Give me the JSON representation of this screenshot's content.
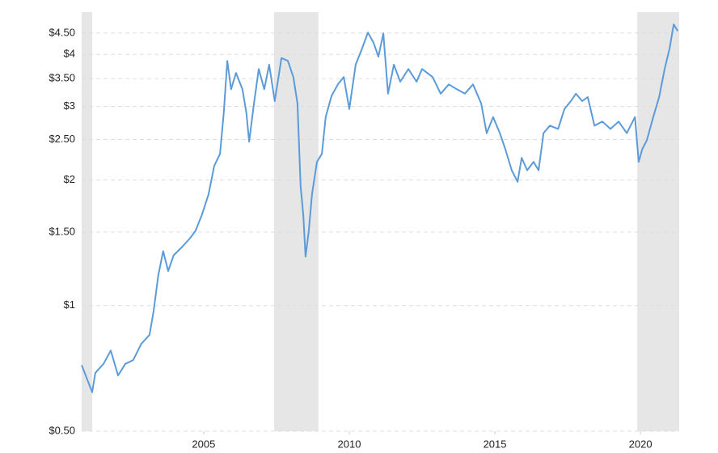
{
  "chart_data": {
    "type": "line",
    "yscale": "log",
    "grid": true,
    "grid_style": "dashed",
    "x": [
      2000.81,
      2001.17,
      2001.28,
      2001.56,
      2001.81,
      2002.06,
      2002.31,
      2002.58,
      2002.86,
      2003.14,
      2003.28,
      2003.44,
      2003.61,
      2003.78,
      2003.97,
      2004.25,
      2004.53,
      2004.72,
      2004.94,
      2005.17,
      2005.36,
      2005.56,
      2005.69,
      2005.81,
      2005.94,
      2006.11,
      2006.33,
      2006.47,
      2006.56,
      2006.72,
      2006.89,
      2007.08,
      2007.25,
      2007.44,
      2007.67,
      2007.89,
      2008.08,
      2008.22,
      2008.33,
      2008.42,
      2008.5,
      2008.61,
      2008.72,
      2008.89,
      2009.06,
      2009.19,
      2009.39,
      2009.61,
      2009.81,
      2010.0,
      2010.22,
      2010.44,
      2010.64,
      2010.83,
      2011.0,
      2011.17,
      2011.33,
      2011.53,
      2011.75,
      2012.03,
      2012.31,
      2012.5,
      2012.86,
      2013.14,
      2013.42,
      2013.69,
      2013.97,
      2014.25,
      2014.53,
      2014.72,
      2014.94,
      2015.17,
      2015.36,
      2015.58,
      2015.78,
      2015.92,
      2016.11,
      2016.33,
      2016.5,
      2016.67,
      2016.89,
      2017.17,
      2017.39,
      2017.61,
      2017.78,
      2018.0,
      2018.19,
      2018.42,
      2018.69,
      2018.97,
      2019.25,
      2019.53,
      2019.81,
      2019.94,
      2020.06,
      2020.22,
      2020.44,
      2020.64,
      2020.83,
      2021.0,
      2021.14,
      2021.28
    ],
    "series": [
      {
        "color": "#5b9bd9",
        "values": [
          0.72,
          0.62,
          0.69,
          0.725,
          0.78,
          0.68,
          0.725,
          0.74,
          0.81,
          0.85,
          0.97,
          1.18,
          1.35,
          1.21,
          1.32,
          1.38,
          1.45,
          1.51,
          1.65,
          1.85,
          2.16,
          2.31,
          2.89,
          3.86,
          3.3,
          3.61,
          3.3,
          2.89,
          2.47,
          3.02,
          3.69,
          3.3,
          3.78,
          3.09,
          3.92,
          3.86,
          3.53,
          3.05,
          1.93,
          1.65,
          1.31,
          1.51,
          1.85,
          2.21,
          2.31,
          2.83,
          3.18,
          3.39,
          3.53,
          2.96,
          3.78,
          4.13,
          4.51,
          4.27,
          3.95,
          4.49,
          3.22,
          3.78,
          3.44,
          3.69,
          3.44,
          3.69,
          3.53,
          3.22,
          3.39,
          3.3,
          3.22,
          3.39,
          3.05,
          2.59,
          2.83,
          2.59,
          2.37,
          2.11,
          1.98,
          2.26,
          2.11,
          2.21,
          2.11,
          2.59,
          2.7,
          2.65,
          2.96,
          3.09,
          3.22,
          3.09,
          3.16,
          2.7,
          2.76,
          2.65,
          2.76,
          2.59,
          2.83,
          2.21,
          2.37,
          2.49,
          2.83,
          3.16,
          3.69,
          4.13,
          4.72,
          4.55
        ]
      }
    ],
    "shaded_ranges": [
      [
        2000.81,
        2001.17
      ],
      [
        2007.42,
        2008.94
      ],
      [
        2019.89,
        2021.33
      ]
    ],
    "shade_color": "#e6e6e6",
    "xlim": [
      2000.81,
      2021.33
    ],
    "xticks": [
      2005,
      2010,
      2015,
      2020
    ],
    "ylim": [
      0.5,
      5.05
    ],
    "yticks": [
      {
        "value": 0.5,
        "label": "$0.50"
      },
      {
        "value": 1,
        "label": "$1"
      },
      {
        "value": 1.5,
        "label": "$1.50"
      },
      {
        "value": 2,
        "label": "$2"
      },
      {
        "value": 2.5,
        "label": "$2.50"
      },
      {
        "value": 3,
        "label": "$3"
      },
      {
        "value": 3.5,
        "label": "$3.50"
      },
      {
        "value": 4,
        "label": "$4"
      },
      {
        "value": 4.5,
        "label": "$4.50"
      }
    ]
  }
}
